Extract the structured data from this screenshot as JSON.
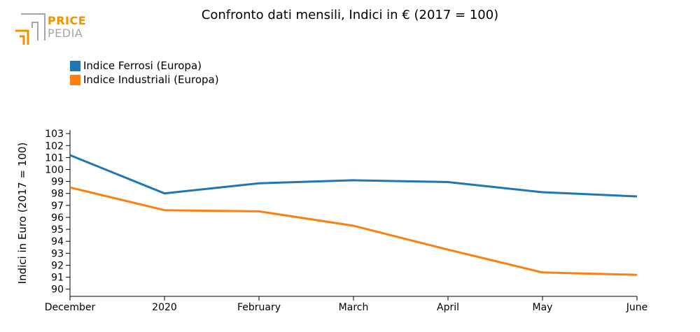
{
  "brand": {
    "price": "PRICE",
    "pedia": "PEDIA",
    "orange": "#f39200",
    "grey": "#a6a6a6"
  },
  "colors": {
    "series": [
      "#1f77b4",
      "#ff7f0e"
    ],
    "axis": "#000000"
  },
  "chart_data": {
    "type": "line",
    "title": "Confronto dati mensili, Indici in € (2017 = 100)",
    "ylabel": "Indici in Euro (2017 = 100)",
    "xlabel": "",
    "categories": [
      "December",
      "2020",
      "February",
      "March",
      "April",
      "May",
      "June"
    ],
    "ylim": [
      89.4,
      103.3
    ],
    "yticks": [
      90,
      91,
      92,
      93,
      94,
      95,
      96,
      97,
      98,
      99,
      100,
      101,
      102,
      103
    ],
    "grid": false,
    "legend": "top-left",
    "series": [
      {
        "name": "Indice Ferrosi (Europa)",
        "values": [
          101.2,
          98.0,
          98.85,
          99.1,
          98.95,
          98.1,
          97.75
        ]
      },
      {
        "name": "Indice Industriali (Europa)",
        "values": [
          98.5,
          96.6,
          96.5,
          95.3,
          93.3,
          91.4,
          91.2
        ]
      }
    ]
  }
}
